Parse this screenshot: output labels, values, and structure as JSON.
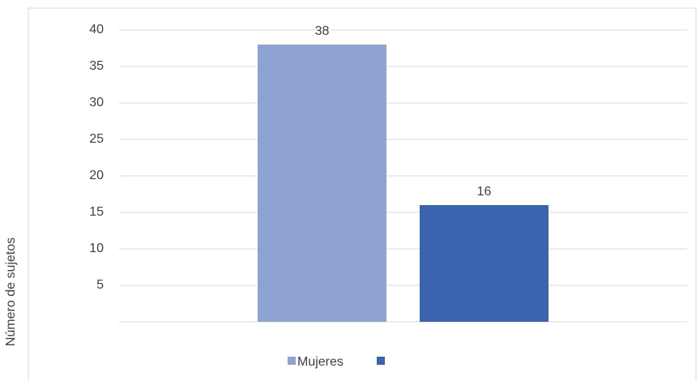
{
  "chart_data": {
    "type": "bar",
    "ylabel": "Número de sujetos",
    "series": [
      {
        "name": "Mujeres",
        "color": "#8fa3d3",
        "values": [
          38
        ]
      },
      {
        "name": null,
        "color": "#3a64ad",
        "values": [
          16
        ]
      }
    ],
    "ylim": [
      0,
      40
    ],
    "yticks": [
      5,
      10,
      15,
      20,
      25,
      30,
      35,
      40
    ],
    "grid": true
  }
}
